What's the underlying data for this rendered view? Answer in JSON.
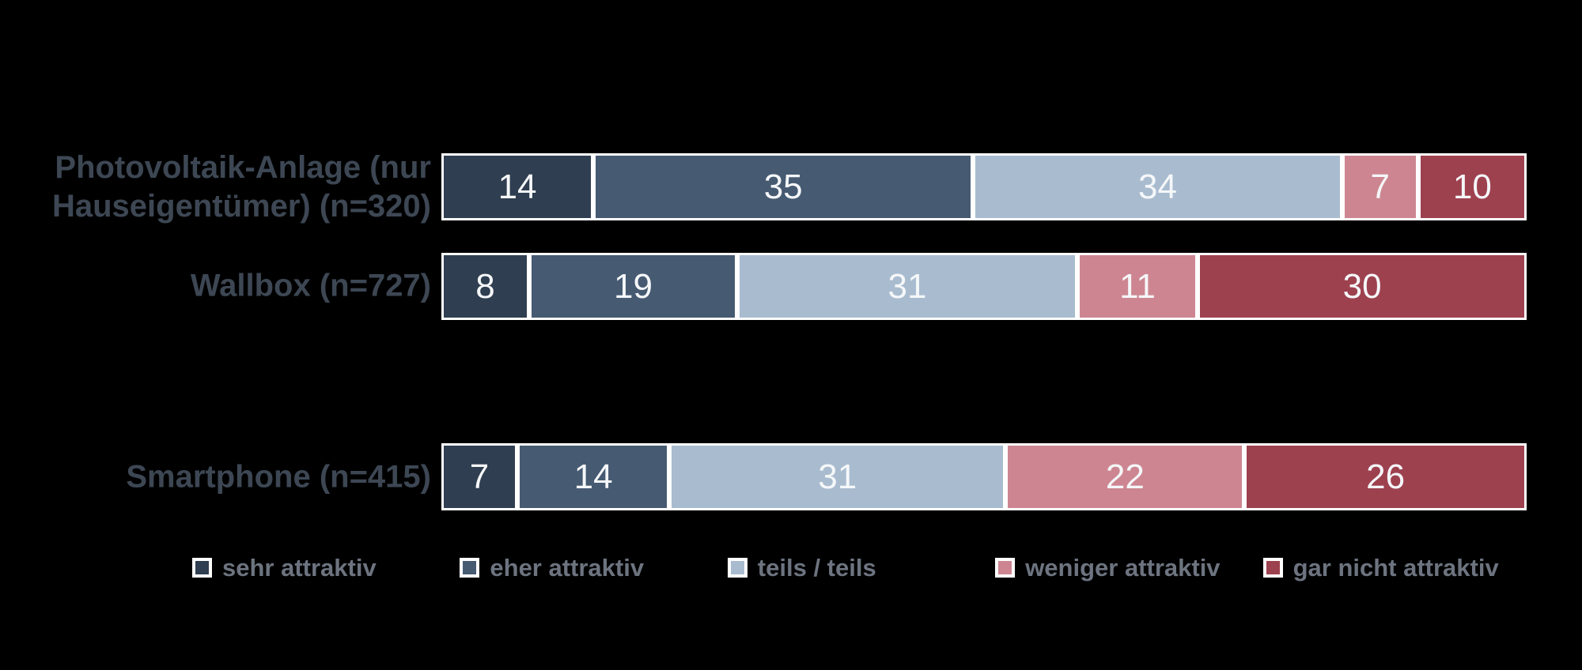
{
  "chart_data": {
    "type": "bar",
    "subtype": "stacked-horizontal-100pct",
    "unit": "percent",
    "title": "",
    "xlabel": "",
    "ylabel": "",
    "xlim": [
      0,
      100
    ],
    "grid": false,
    "legend_position": "bottom",
    "categories": [
      "Photovoltaik-Anlage (nur Hauseigentümer) (n=320)",
      "Wallbox (n=727)",
      "Smartphone (n=415)"
    ],
    "categories_display": [
      "Photovoltaik-Anlage (nur\nHauseigentümer) (n=320)",
      "Wallbox (n=727)",
      "Smartphone (n=415)"
    ],
    "series": [
      {
        "name": "sehr attraktiv",
        "color": "#2f3e50",
        "values": [
          14,
          8,
          7
        ]
      },
      {
        "name": "eher attraktiv",
        "color": "#465a72",
        "values": [
          35,
          19,
          14
        ]
      },
      {
        "name": "teils / teils",
        "color": "#a9bccf",
        "values": [
          34,
          31,
          31
        ]
      },
      {
        "name": "weniger attraktiv",
        "color": "#cd8691",
        "values": [
          7,
          11,
          22
        ]
      },
      {
        "name": "gar nicht attraktiv",
        "color": "#9e414f",
        "values": [
          10,
          30,
          26
        ]
      }
    ]
  },
  "style": {
    "category_label_color": "#3d4754",
    "legend_label_color": "#6d7480",
    "segment_border_color": "#ffffff",
    "value_text_color": "#f5f7f9",
    "background_color": "#000000"
  }
}
